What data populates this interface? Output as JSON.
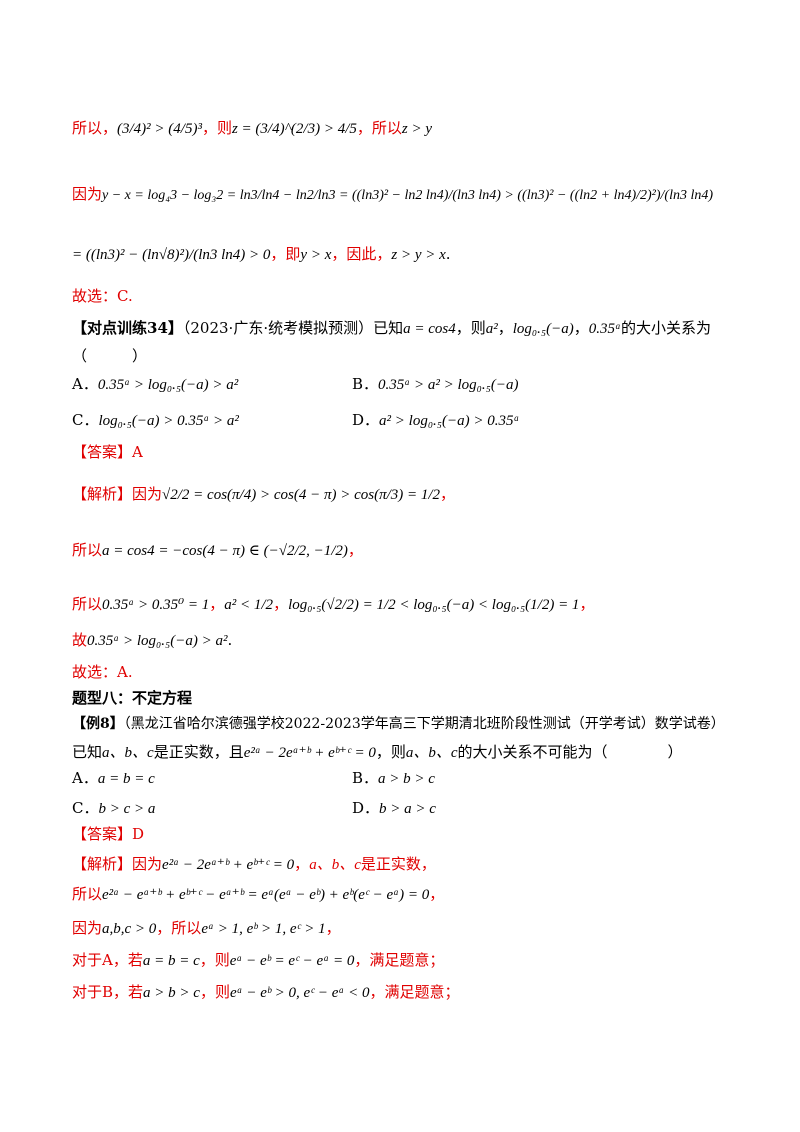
{
  "lines": {
    "l1_prefix": "所以，",
    "l1_a": "(3/4)² > (4/5)³",
    "l1_mid": "，则",
    "l1_b": "z = (3/4)^(2/3) > 4/5",
    "l1_mid2": "，所以",
    "l1_c": "z > y",
    "l2_prefix": "因为",
    "l2_math": "y − x = log₄3 − log₃2 = ln3/ln4 − ln2/ln3 = ((ln3)² − ln2 ln4)/(ln3 ln4) > ((ln3)² − ((ln2 + ln4)/2)²)/(ln3 ln4)",
    "l3_math": "= ((ln3)² − (ln√8)²)/(ln3 ln4) > 0",
    "l3_mid": "，即",
    "l3_b": "y > x",
    "l3_mid2": "，因此，",
    "l3_c": "z > y > x",
    "l3_end": ".",
    "l4": "故选：C.",
    "l5_tag": "【对点训练34】",
    "l5_text": "（2023·广东·统考模拟预测）已知",
    "l5_math1": "a = cos4",
    "l5_text2": "，则",
    "l5_math2": "a²",
    "l5_text3": "，",
    "l5_math3": "log₀.₅(−a)",
    "l5_text4": "，",
    "l5_math4": "0.35ᵃ",
    "l5_text5": "的大小关系为",
    "l6": "（　　　）",
    "optA_label": "A．",
    "optA": "0.35ᵃ > log₀.₅(−a) > a²",
    "optB_label": "B．",
    "optB": "0.35ᵃ > a² > log₀.₅(−a)",
    "optC_label": "C．",
    "optC": "log₀.₅(−a) > 0.35ᵃ > a²",
    "optD_label": "D．",
    "optD": "a² > log₀.₅(−a) > 0.35ᵃ",
    "ans1": "【答案】A",
    "an1_tag": "【解析】",
    "an1_text": "因为",
    "an1_math": "√2/2 = cos(π/4) > cos(4 − π) > cos(π/3) = 1/2",
    "an1_end": "，",
    "an2_text": "所以",
    "an2_math": "a = cos4 = −cos(4 − π) ∈ (−√2/2, −1/2)",
    "an2_end": "，",
    "an3_text": "所以",
    "an3_math1": "0.35ᵃ > 0.35⁰ = 1",
    "an3_mid": "，",
    "an3_math2": "a² < 1/2",
    "an3_mid2": "，",
    "an3_math3": "log₀.₅(√2/2) = 1/2 < log₀.₅(−a) < log₀.₅(1/2) = 1",
    "an3_end": "，",
    "an4_text": "故",
    "an4_math": "0.35ᵃ > log₀.₅(−a) > a²",
    "an4_end": ".",
    "an5": "故选：A.",
    "sec": "题型八：不定方程",
    "ex_tag": "【例8】",
    "ex_src": "（黑龙江省哈尔滨德强学校2022-2023学年高三下学期清北班阶段性测试（开学考试）数学试卷）",
    "ex_text1": "已知",
    "ex_abc": "a、b、c",
    "ex_text2": "是正实数，且",
    "ex_math": "e²ᵃ − 2eᵃ⁺ᵇ + eᵇ⁺ᶜ = 0",
    "ex_text3": "，则",
    "ex_text4": "的大小关系不可能为（　　　　）",
    "e_optA_label": "A．",
    "e_optA": "a = b = c",
    "e_optB_label": "B．",
    "e_optB": "a > b > c",
    "e_optC_label": "C．",
    "e_optC": "b > c > a",
    "e_optD_label": "D．",
    "e_optD": "b > a > c",
    "ans2": "【答案】D",
    "s1_tag": "【解析】",
    "s1_text": "因为",
    "s1_math": "e²ᵃ − 2eᵃ⁺ᵇ + eᵇ⁺ᶜ = 0",
    "s1_text2": "，",
    "s1_abc": "a、b、c",
    "s1_text3": "是正实数，",
    "s2_text": "所以",
    "s2_math": "e²ᵃ − eᵃ⁺ᵇ + eᵇ⁺ᶜ − eᵃ⁺ᵇ = eᵃ(eᵃ − eᵇ) + eᵇ(eᶜ − eᵃ) = 0",
    "s2_end": "，",
    "s3_text": "因为",
    "s3_math1": "a,b,c > 0",
    "s3_mid": "，所以",
    "s3_math2": "eᵃ > 1, eᵇ > 1, eᶜ > 1",
    "s3_end": "，",
    "s4_text": "对于A，若",
    "s4_math1": "a = b = c",
    "s4_mid": "，则",
    "s4_math2": "eᵃ − eᵇ = eᶜ − eᵃ = 0",
    "s4_end": "，满足题意；",
    "s5_text": "对于B，若",
    "s5_math1": "a > b > c",
    "s5_mid": "，则",
    "s5_math2": "eᵃ − eᵇ > 0, eᶜ − eᵃ < 0",
    "s5_end": "，满足题意；"
  }
}
